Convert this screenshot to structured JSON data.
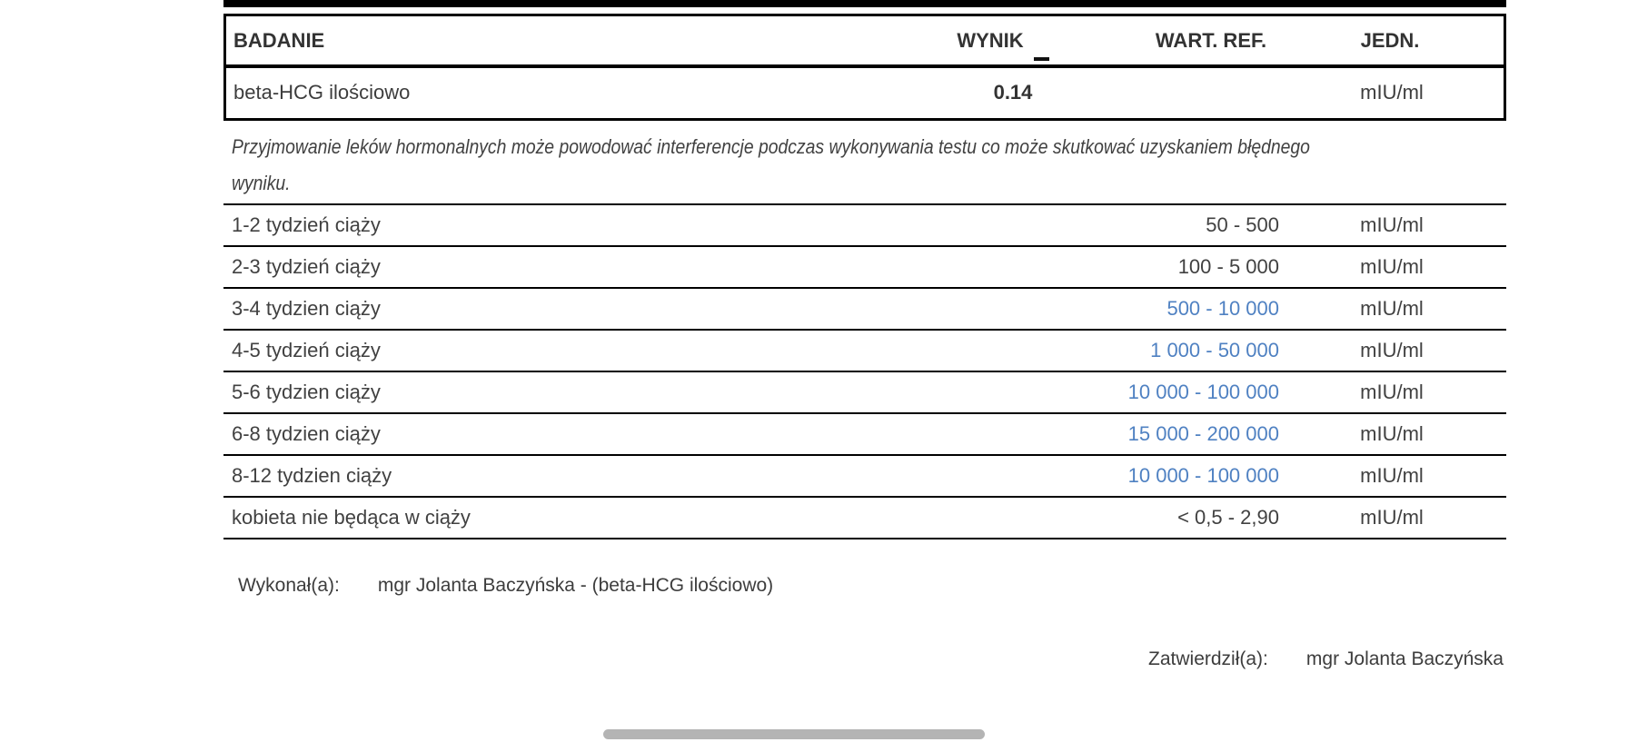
{
  "result_table": {
    "columns": [
      "BADANIE",
      "WYNIK",
      "WART. REF.",
      "JEDN."
    ],
    "row": {
      "badanie": "beta-HCG ilościowo",
      "wynik": "0.14",
      "wart_ref": "",
      "jedn": "mIU/ml"
    }
  },
  "note": {
    "line1": "Przyjmowanie leków hormonalnych może powodować interferencje podczas wykonywania testu co może skutkować uzyskaniem błędnego",
    "line2": "wyniku."
  },
  "reference_table": {
    "rows": [
      {
        "label": "1-2 tydzień ciąży",
        "range": "50 - 500",
        "unit": "mIU/ml",
        "highlight": false
      },
      {
        "label": "2-3 tydzień ciąży",
        "range": "100 - 5 000",
        "unit": "mIU/ml",
        "highlight": false
      },
      {
        "label": "3-4 tydzien ciąży",
        "range": "500 - 10 000",
        "unit": "mIU/ml",
        "highlight": true
      },
      {
        "label": "4-5 tydzień ciąży",
        "range": "1 000 - 50 000",
        "unit": "mIU/ml",
        "highlight": true
      },
      {
        "label": "5-6 tydzien ciąży",
        "range": "10 000 - 100 000",
        "unit": "mIU/ml",
        "highlight": true
      },
      {
        "label": "6-8 tydzien ciąży",
        "range": "15 000 - 200 000",
        "unit": "mIU/ml",
        "highlight": true
      },
      {
        "label": "8-12 tydzien ciąży",
        "range": "10 000 - 100 000",
        "unit": "mIU/ml",
        "highlight": true
      },
      {
        "label": "kobieta nie będąca w ciąży",
        "range": "< 0,5 - 2,90",
        "unit": "mIU/ml",
        "highlight": false
      }
    ]
  },
  "footer": {
    "performed_label": "Wykonał(a):",
    "performed_value": "mgr Jolanta Baczyńska - (beta-HCG ilościowo)",
    "approved_label": "Zatwierdził(a):",
    "approved_value": "mgr Jolanta Baczyńska"
  },
  "icons": {
    "wynik_marker": "underscore-dash"
  },
  "colors": {
    "highlight_blue": "#4f81c2",
    "text": "#3d3d3d",
    "border": "#000000",
    "scrollbar_thumb": "#b4b4b4"
  }
}
